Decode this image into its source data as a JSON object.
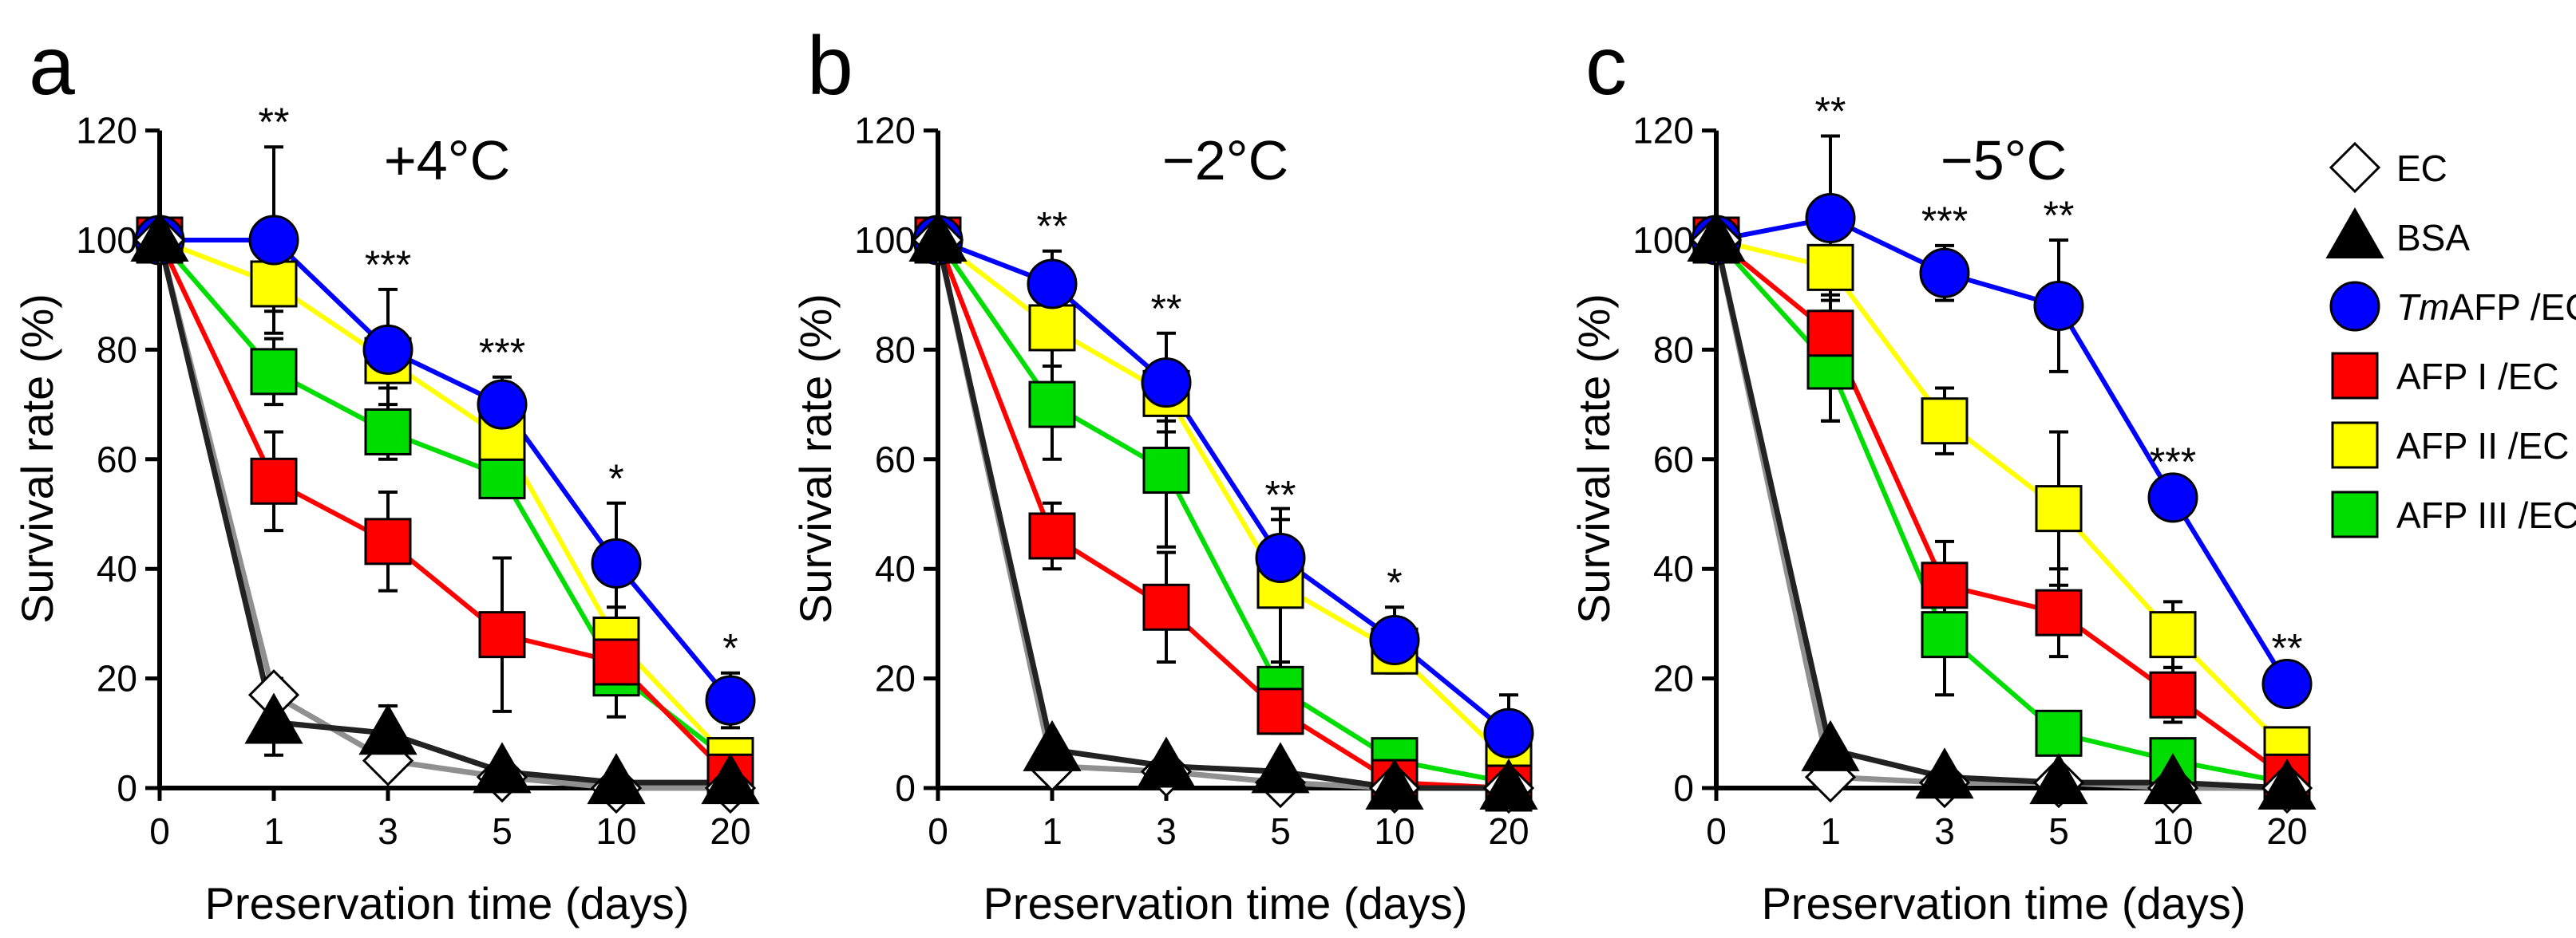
{
  "figure": {
    "legend_title_none": "",
    "series_order": [
      "EC",
      "BSA",
      "TmAFP",
      "AFP I",
      "AFP II",
      "AFP III"
    ]
  },
  "legend": {
    "items": [
      {
        "key": "EC",
        "label": "EC",
        "italic_prefix": "",
        "marker": "diamond-open",
        "color": "#ffffff"
      },
      {
        "key": "BSA",
        "label": "BSA",
        "italic_prefix": "",
        "marker": "triangle",
        "color": "#000000"
      },
      {
        "key": "TmAFP",
        "label": "AFP /EC",
        "italic_prefix": "Tm",
        "marker": "circle",
        "color": "#0000ff"
      },
      {
        "key": "AFP I",
        "label": "AFP I /EC",
        "italic_prefix": "",
        "marker": "square",
        "color": "#ff0000"
      },
      {
        "key": "AFP II",
        "label": "AFP II /EC",
        "italic_prefix": "",
        "marker": "square",
        "color": "#ffff00"
      },
      {
        "key": "AFP III",
        "label": "AFP III /EC",
        "italic_prefix": "",
        "marker": "square",
        "color": "#00dd00"
      }
    ]
  },
  "colors": {
    "EC_line": "#909090",
    "BSA_line": "#222222",
    "TmAFP": "#0000ff",
    "AFP I": "#ff0000",
    "AFP II": "#ffff00",
    "AFP III": "#00dd00"
  },
  "chart_data": [
    {
      "type": "line",
      "panel_letter": "a",
      "title": "+4°C",
      "xlabel": "Preservation time (days)",
      "ylabel": "Survival rate (%)",
      "categories": [
        "0",
        "1",
        "3",
        "5",
        "10",
        "20"
      ],
      "ylim": [
        0,
        120
      ],
      "yticks": [
        0,
        20,
        40,
        60,
        80,
        100,
        120
      ],
      "significance": [
        "",
        "**",
        "***",
        "***",
        "*",
        "*"
      ],
      "series": [
        {
          "name": "EC",
          "values": [
            100,
            17,
            5,
            2,
            0,
            0
          ],
          "errors": [
            0,
            3,
            1,
            1,
            0,
            0
          ]
        },
        {
          "name": "BSA",
          "values": [
            100,
            12,
            10,
            3,
            1,
            1
          ],
          "errors": [
            0,
            6,
            5,
            2,
            1,
            1
          ]
        },
        {
          "name": "TmAFP /EC",
          "values": [
            100,
            100,
            80,
            70,
            41,
            16
          ],
          "errors": [
            0,
            17,
            11,
            5,
            11,
            5
          ]
        },
        {
          "name": "AFP I /EC",
          "values": [
            100,
            56,
            45,
            28,
            23,
            2
          ],
          "errors": [
            0,
            9,
            9,
            14,
            5,
            1
          ]
        },
        {
          "name": "AFP II /EC",
          "values": [
            100,
            92,
            78,
            64,
            27,
            5
          ],
          "errors": [
            0,
            5,
            5,
            5,
            6,
            1
          ]
        },
        {
          "name": "AFP III /EC",
          "values": [
            100,
            76,
            65,
            57,
            21,
            5
          ],
          "errors": [
            0,
            6,
            5,
            4,
            8,
            1
          ]
        }
      ]
    },
    {
      "type": "line",
      "panel_letter": "b",
      "title": "−2°C",
      "xlabel": "Preservation time (days)",
      "ylabel": "Survival rate (%)",
      "categories": [
        "0",
        "1",
        "3",
        "5",
        "10",
        "20"
      ],
      "ylim": [
        0,
        120
      ],
      "yticks": [
        0,
        20,
        40,
        60,
        80,
        100,
        120
      ],
      "significance": [
        "",
        "**",
        "**",
        "**",
        "*",
        ""
      ],
      "series": [
        {
          "name": "EC",
          "values": [
            100,
            4,
            3,
            1,
            0,
            0
          ],
          "errors": [
            0,
            1,
            1,
            1,
            0,
            0
          ]
        },
        {
          "name": "BSA",
          "values": [
            100,
            7,
            4,
            3,
            0,
            0
          ],
          "errors": [
            0,
            2,
            2,
            2,
            0,
            0
          ]
        },
        {
          "name": "TmAFP /EC",
          "values": [
            100,
            92,
            74,
            42,
            27,
            10
          ],
          "errors": [
            0,
            6,
            9,
            7,
            6,
            7
          ]
        },
        {
          "name": "AFP I /EC",
          "values": [
            100,
            46,
            33,
            14,
            1,
            0
          ],
          "errors": [
            0,
            6,
            10,
            4,
            1,
            0
          ]
        },
        {
          "name": "AFP II /EC",
          "values": [
            100,
            84,
            72,
            37,
            25,
            5
          ],
          "errors": [
            0,
            7,
            5,
            14,
            3,
            3
          ]
        },
        {
          "name": "AFP III /EC",
          "values": [
            100,
            70,
            58,
            18,
            5,
            1
          ],
          "errors": [
            0,
            10,
            14,
            5,
            2,
            1
          ]
        }
      ]
    },
    {
      "type": "line",
      "panel_letter": "c",
      "title": "−5°C",
      "xlabel": "Preservation time (days)",
      "ylabel": "Survival rate (%)",
      "categories": [
        "0",
        "1",
        "3",
        "5",
        "10",
        "20"
      ],
      "ylim": [
        0,
        120
      ],
      "yticks": [
        0,
        20,
        40,
        60,
        80,
        100,
        120
      ],
      "significance": [
        "",
        "**",
        "***",
        "**",
        "***",
        "**"
      ],
      "series": [
        {
          "name": "EC",
          "values": [
            100,
            2,
            1,
            1,
            0,
            0
          ],
          "errors": [
            0,
            1,
            0,
            0,
            0,
            0
          ]
        },
        {
          "name": "BSA",
          "values": [
            100,
            7,
            2,
            1,
            1,
            0
          ],
          "errors": [
            0,
            2,
            1,
            1,
            1,
            0
          ]
        },
        {
          "name": "TmAFP /EC",
          "values": [
            100,
            104,
            94,
            88,
            53,
            19
          ],
          "errors": [
            0,
            15,
            5,
            12,
            2,
            2
          ]
        },
        {
          "name": "AFP I /EC",
          "values": [
            100,
            83,
            37,
            32,
            17,
            2
          ],
          "errors": [
            0,
            16,
            8,
            8,
            5,
            1
          ]
        },
        {
          "name": "AFP II /EC",
          "values": [
            100,
            95,
            67,
            51,
            28,
            7
          ],
          "errors": [
            0,
            5,
            6,
            14,
            6,
            2
          ]
        },
        {
          "name": "AFP III /EC",
          "values": [
            100,
            77,
            28,
            10,
            5,
            1
          ],
          "errors": [
            0,
            10,
            11,
            3,
            2,
            1
          ]
        }
      ]
    }
  ]
}
